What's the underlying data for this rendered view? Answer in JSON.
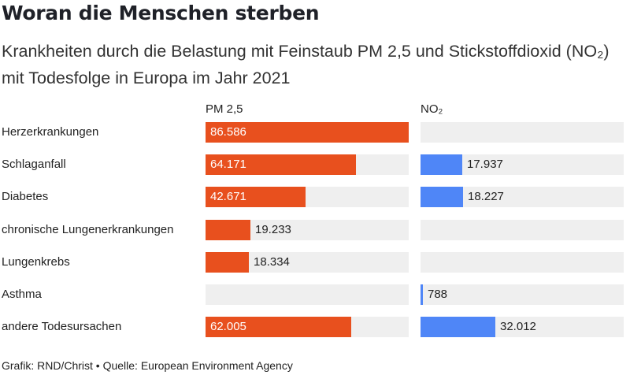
{
  "title": "Woran die Menschen sterben",
  "subtitle": "Krankheiten durch die Belastung mit Feinstaub PM 2,5 und Stickstoffdioxid (NO₂) mit Todesfolge in Europa im Jahr 2021",
  "footer": "Grafik: RND/Christ • Quelle: European Environment Agency",
  "chart_data": {
    "type": "bar",
    "categories": [
      "Herzerkrankungen",
      "Schlaganfall",
      "Diabetes",
      "chronische Lungenerkrankungen",
      "Lungenkrebs",
      "Asthma",
      "andere Todesursachen"
    ],
    "series": [
      {
        "name": "PM 2,5",
        "color": "#e8501e",
        "values": [
          86586,
          64171,
          42671,
          19233,
          18334,
          null,
          62005
        ],
        "labels": [
          "86.586",
          "64.171",
          "42.671",
          "19.233",
          "18.334",
          "",
          "62.005"
        ]
      },
      {
        "name": "NO₂",
        "color": "#4f86f7",
        "values": [
          null,
          17937,
          18227,
          null,
          null,
          788,
          32012
        ],
        "labels": [
          "",
          "17.937",
          "18.227",
          "",
          "",
          "788",
          "32.012"
        ]
      }
    ],
    "xlim": [
      0,
      86586
    ]
  }
}
